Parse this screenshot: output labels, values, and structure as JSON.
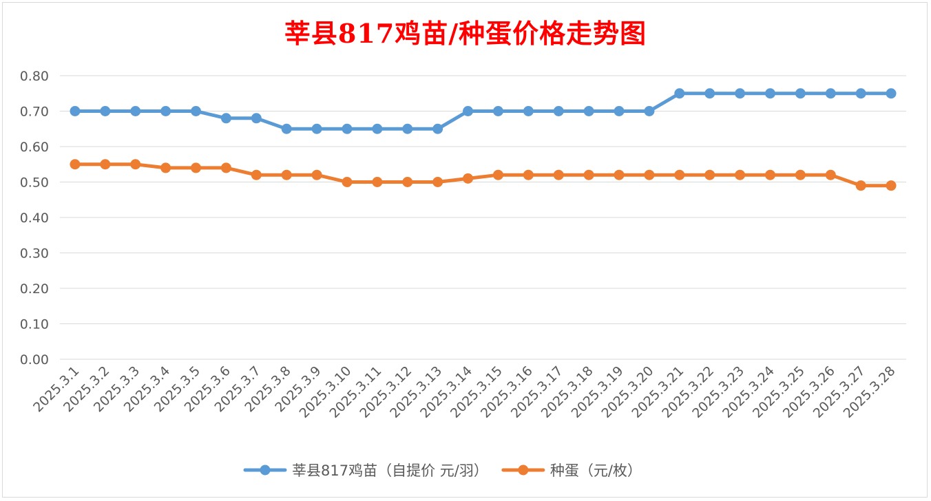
{
  "chart_data": {
    "type": "line",
    "title": "莘县817鸡苗/种蛋价格走势图",
    "xlabel": "",
    "ylabel": "",
    "ylim": [
      0,
      0.8
    ],
    "yticks": [
      "0.00",
      "0.10",
      "0.20",
      "0.30",
      "0.40",
      "0.50",
      "0.60",
      "0.70",
      "0.80"
    ],
    "grid": "horizontal",
    "legend_position": "bottom",
    "x": [
      "2025.3.1",
      "2025.3.2",
      "2025.3.3",
      "2025.3.4",
      "2025.3.5",
      "2025.3.6",
      "2025.3.7",
      "2025.3.8",
      "2025.3.9",
      "2025.3.10",
      "2025.3.11",
      "2025.3.12",
      "2025.3.13",
      "2025.3.14",
      "2025.3.15",
      "2025.3.16",
      "2025.3.17",
      "2025.3.18",
      "2025.3.19",
      "2025.3.20",
      "2025.3.21",
      "2025.3.22",
      "2025.3.23",
      "2025.3.24",
      "2025.3.25",
      "2025.3.26",
      "2025.3.27",
      "2025.3.28"
    ],
    "series": [
      {
        "name": "莘县817鸡苗（自提价 元/羽）",
        "color": "#5b9bd5",
        "values": [
          0.7,
          0.7,
          0.7,
          0.7,
          0.7,
          0.68,
          0.68,
          0.65,
          0.65,
          0.65,
          0.65,
          0.65,
          0.65,
          0.7,
          0.7,
          0.7,
          0.7,
          0.7,
          0.7,
          0.7,
          0.75,
          0.75,
          0.75,
          0.75,
          0.75,
          0.75,
          0.75,
          0.75
        ]
      },
      {
        "name": "种蛋（元/枚）",
        "color": "#ed7d31",
        "values": [
          0.55,
          0.55,
          0.55,
          0.54,
          0.54,
          0.54,
          0.52,
          0.52,
          0.52,
          0.5,
          0.5,
          0.5,
          0.5,
          0.51,
          0.52,
          0.52,
          0.52,
          0.52,
          0.52,
          0.52,
          0.52,
          0.52,
          0.52,
          0.52,
          0.52,
          0.52,
          0.49,
          0.49
        ]
      }
    ]
  }
}
